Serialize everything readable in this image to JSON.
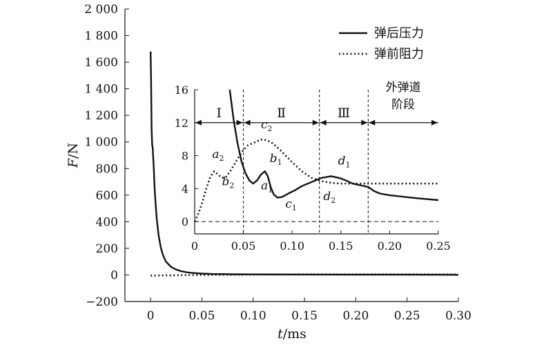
{
  "chart_data": [
    {
      "type": "line",
      "xlabel": "t/ms",
      "ylabel": "F/N",
      "xlim": [
        -0.025,
        0.3
      ],
      "ylim": [
        -200,
        2000
      ],
      "xticks": [
        "0",
        "0.05",
        "0.10",
        "0.15",
        "0.20",
        "0.25",
        "0.30"
      ],
      "xtick_values": [
        0,
        0.05,
        0.1,
        0.15,
        0.2,
        0.25,
        0.3
      ],
      "yticks": [
        "−200",
        "0",
        "200",
        "400",
        "600",
        "800",
        "1 000",
        "1 200",
        "1 400",
        "1 600",
        "1 800",
        "2 000"
      ],
      "ytick_values": [
        -200,
        0,
        200,
        400,
        600,
        800,
        1000,
        1200,
        1400,
        1600,
        1800,
        2000
      ],
      "legend_position": "top-right",
      "series": [
        {
          "name": "弹后压力",
          "style": "solid",
          "x": [
            0,
            0.0005,
            0.001,
            0.0015,
            0.002,
            0.003,
            0.004,
            0.005,
            0.006,
            0.008,
            0.01,
            0.012,
            0.015,
            0.02,
            0.025,
            0.03,
            0.035,
            0.04,
            0.05,
            0.06,
            0.08,
            0.1,
            0.15,
            0.2,
            0.25,
            0.3
          ],
          "y": [
            1680,
            1450,
            1100,
            980,
            960,
            820,
            640,
            520,
            420,
            290,
            205,
            150,
            100,
            60,
            40,
            28,
            20,
            16,
            10,
            7,
            5,
            4,
            3,
            2,
            2,
            1
          ]
        },
        {
          "name": "弹前阻力",
          "style": "dotted",
          "x": [
            0,
            0.02,
            0.05,
            0.1,
            0.15,
            0.2,
            0.25,
            0.3
          ],
          "y": [
            -5,
            -3,
            0,
            3,
            4,
            4,
            4,
            4
          ]
        }
      ]
    },
    {
      "type": "line",
      "inset": true,
      "xlim": [
        0,
        0.25
      ],
      "ylim": [
        -1.5,
        16
      ],
      "xticks": [
        "0",
        "0.05",
        "0.10",
        "0.15",
        "0.20",
        "0.25"
      ],
      "xtick_values": [
        0,
        0.05,
        0.1,
        0.15,
        0.2,
        0.25
      ],
      "yticks": [
        "0",
        "4",
        "8",
        "12",
        "16"
      ],
      "ytick_values": [
        0,
        4,
        8,
        12,
        16
      ],
      "reference_line_y": 0,
      "stage_boundaries_x": [
        0.05,
        0.128,
        0.178
      ],
      "stages": [
        "Ⅰ",
        "Ⅱ",
        "Ⅲ"
      ],
      "stage_last_line1": "外弹道",
      "stage_last_line2": "阶段",
      "series": [
        {
          "name": "弹后压力",
          "style": "solid",
          "x": [
            0.036,
            0.04,
            0.044,
            0.048,
            0.052,
            0.056,
            0.06,
            0.064,
            0.068,
            0.072,
            0.075,
            0.078,
            0.081,
            0.085,
            0.09,
            0.096,
            0.103,
            0.11,
            0.12,
            0.13,
            0.14,
            0.148,
            0.155,
            0.162,
            0.17,
            0.178,
            0.184,
            0.19,
            0.2,
            0.215,
            0.23,
            0.25
          ],
          "y": [
            16.0,
            12.3,
            9.5,
            7.3,
            5.9,
            5.0,
            4.6,
            5.0,
            5.7,
            6.1,
            5.5,
            4.2,
            3.3,
            2.9,
            3.0,
            3.4,
            3.8,
            4.3,
            4.8,
            5.3,
            5.5,
            5.3,
            5.0,
            4.6,
            4.4,
            4.2,
            3.7,
            3.4,
            3.2,
            3.0,
            2.8,
            2.6
          ]
        },
        {
          "name": "弹前阻力",
          "style": "dotted",
          "x": [
            0,
            0.004,
            0.008,
            0.012,
            0.016,
            0.02,
            0.024,
            0.028,
            0.032,
            0.036,
            0.04,
            0.045,
            0.05,
            0.055,
            0.06,
            0.065,
            0.07,
            0.075,
            0.08,
            0.085,
            0.09,
            0.095,
            0.1,
            0.11,
            0.12,
            0.13,
            0.14,
            0.15,
            0.2,
            0.25
          ],
          "y": [
            0,
            1.0,
            2.4,
            4.0,
            5.4,
            6.1,
            5.7,
            5.3,
            5.4,
            6.0,
            6.8,
            7.8,
            8.7,
            9.3,
            9.5,
            9.8,
            10.0,
            9.8,
            9.5,
            9.0,
            8.4,
            7.8,
            7.2,
            6.1,
            5.3,
            4.9,
            4.7,
            4.6,
            4.6,
            4.6
          ]
        }
      ],
      "annotations": [
        {
          "base": "a",
          "sub": "1",
          "x": 0.068,
          "y": 3.9
        },
        {
          "base": "a",
          "sub": "2",
          "x": 0.018,
          "y": 7.7
        },
        {
          "base": "b",
          "sub": "1",
          "x": 0.077,
          "y": 7.2
        },
        {
          "base": "b",
          "sub": "2",
          "x": 0.028,
          "y": 4.4
        },
        {
          "base": "c",
          "sub": "1",
          "x": 0.093,
          "y": 1.7
        },
        {
          "base": "c",
          "sub": "2",
          "x": 0.068,
          "y": 11.3
        },
        {
          "base": "d",
          "sub": "1",
          "x": 0.147,
          "y": 6.9
        },
        {
          "base": "d",
          "sub": "2",
          "x": 0.132,
          "y": 2.6
        }
      ]
    }
  ]
}
